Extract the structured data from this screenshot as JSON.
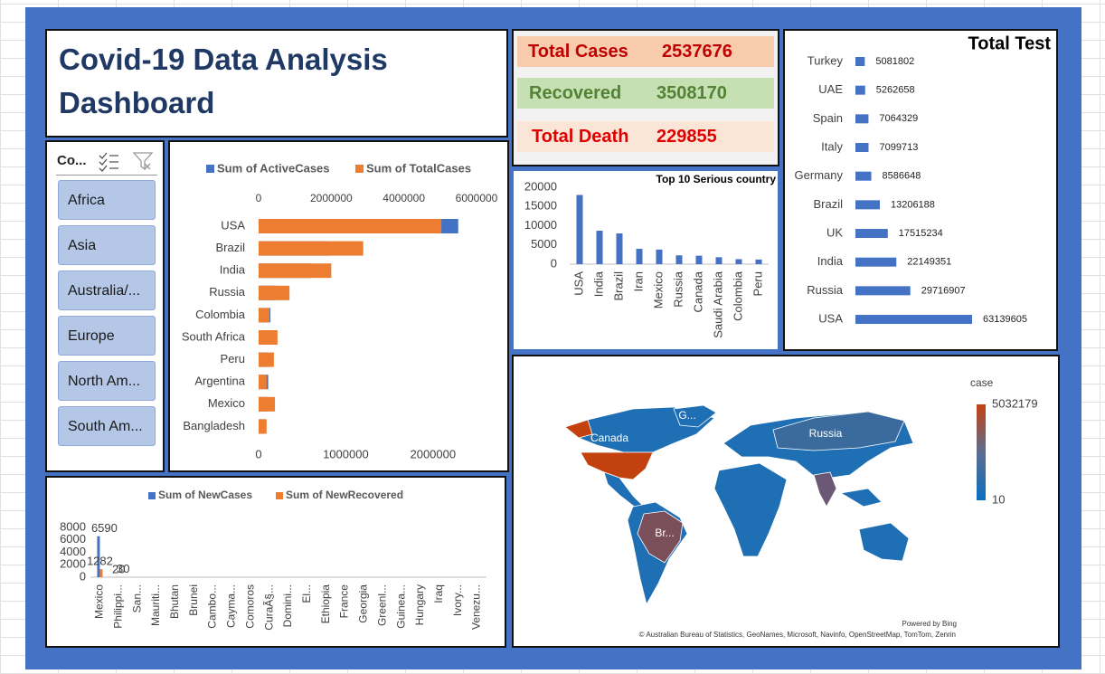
{
  "header": {
    "title": "Covid-19 Data Analysis Dashboard"
  },
  "kpis": [
    {
      "label": "Total Cases",
      "value": 2537676
    },
    {
      "label": "Recovered",
      "value": 3508170
    },
    {
      "label": "Total Death",
      "value": 229855
    }
  ],
  "slicer": {
    "title": "Co...",
    "items": [
      "Africa",
      "Asia",
      "Australia/...",
      "Europe",
      "North Am...",
      "South Am..."
    ]
  },
  "chart_data": [
    {
      "type": "bar",
      "orientation": "horizontal",
      "title": "Total Test",
      "color": "#4472c4",
      "categories": [
        "Turkey",
        "UAE",
        "Spain",
        "Italy",
        "Germany",
        "Brazil",
        "UK",
        "India",
        "Russia",
        "USA"
      ],
      "values": [
        5081802,
        5262658,
        7064329,
        7099713,
        8586648,
        13206188,
        17515234,
        22149351,
        29716907,
        63139605
      ]
    },
    {
      "type": "bar",
      "title": "Top 10 Serious country",
      "color": "#4472c4",
      "categories": [
        "USA",
        "India",
        "Brazil",
        "Iran",
        "Mexico",
        "Russia",
        "Canada",
        "Saudi Arabia",
        "Colombia",
        "Peru"
      ],
      "values": [
        18000,
        8700,
        8000,
        4000,
        3800,
        2300,
        2200,
        1800,
        1300,
        1200
      ],
      "ylim": [
        0,
        20000
      ],
      "yticks": [
        0,
        5000,
        10000,
        15000,
        20000
      ]
    },
    {
      "type": "bar",
      "orientation": "horizontal",
      "categories": [
        "USA",
        "Brazil",
        "India",
        "Russia",
        "Colombia",
        "South Africa",
        "Peru",
        "Argentina",
        "Mexico",
        "Bangladesh"
      ],
      "series": [
        {
          "name": "Sum of ActiveCases",
          "color": "#4472c4",
          "axis": "x",
          "values": [
            2290000,
            800000,
            600000,
            200000,
            135000,
            150000,
            100000,
            110000,
            100000,
            80000
          ]
        },
        {
          "name": "Sum of TotalCases",
          "color": "#ed7d31",
          "axis": "x2",
          "values": [
            5032179,
            2880000,
            2000000,
            850000,
            300000,
            520000,
            420000,
            220000,
            450000,
            220000
          ]
        }
      ],
      "xlim": [
        0,
        2500000
      ],
      "xticks": [
        0,
        1000000,
        2000000
      ],
      "x2lim": [
        0,
        6000000
      ],
      "x2ticks": [
        0,
        2000000,
        4000000,
        6000000
      ]
    },
    {
      "type": "bar",
      "categories": [
        "Mexico",
        "Philippi...",
        "San...",
        "Mauriti...",
        "Bhutan",
        "Brunei",
        "Cambo...",
        "Cayma...",
        "Comoros",
        "CuraÃ§...",
        "Domini...",
        "El...",
        "Ethiopia",
        "France",
        "Georgia",
        "Greenl...",
        "Guinea...",
        "Hungary",
        "Iraq",
        "Ivory...",
        "Venezu..."
      ],
      "series": [
        {
          "name": "Sum of NewCases",
          "color": "#4472c4",
          "values": [
            6590,
            30,
            0,
            0,
            0,
            0,
            0,
            0,
            0,
            0,
            0,
            0,
            0,
            0,
            0,
            0,
            0,
            0,
            0,
            0,
            0
          ]
        },
        {
          "name": "Sum of NewRecovered",
          "color": "#ed7d31",
          "values": [
            1282,
            20,
            0,
            0,
            0,
            0,
            0,
            0,
            0,
            0,
            0,
            0,
            0,
            0,
            0,
            0,
            0,
            0,
            0,
            0,
            0
          ]
        }
      ],
      "ylim": [
        0,
        8000
      ],
      "yticks": [
        0,
        2000,
        4000,
        6000,
        8000
      ]
    },
    {
      "type": "map",
      "legend_title": "case",
      "colorlim": [
        10,
        5032179
      ],
      "region_labels": [
        "G...",
        "Canada",
        "Russia",
        "Br..."
      ],
      "footer": "Powered by Bing",
      "attribution": "© Australian Bureau of Statistics, GeoNames, Microsoft, Navinfo, OpenStreetMap, TomTom, Zenrin"
    }
  ]
}
